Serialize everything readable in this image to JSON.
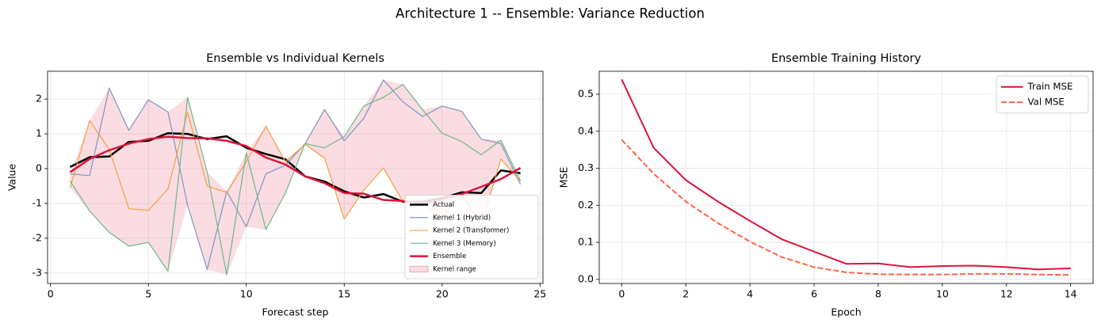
{
  "title": "Architecture 1 -- Ensemble: Variance Reduction",
  "chart_data": [
    {
      "type": "line",
      "title": "Ensemble vs Individual Kernels",
      "xlabel": "Forecast step",
      "ylabel": "Value",
      "x": [
        1,
        2,
        3,
        4,
        5,
        6,
        7,
        8,
        9,
        10,
        11,
        12,
        13,
        14,
        15,
        16,
        17,
        18,
        19,
        20,
        21,
        22,
        23,
        24
      ],
      "series": [
        {
          "name": "Actual",
          "color": "#000000",
          "linewidth": 2.5,
          "values": [
            0.05,
            0.33,
            0.35,
            0.77,
            0.8,
            1.02,
            1.0,
            0.85,
            0.93,
            0.6,
            0.42,
            0.27,
            -0.22,
            -0.37,
            -0.65,
            -0.83,
            -0.73,
            -0.95,
            -0.95,
            -0.85,
            -0.68,
            -0.7,
            -0.05,
            -0.13
          ]
        },
        {
          "name": "Kernel 1 (Hybrid)",
          "color": "#7f96c0",
          "linewidth": 1.2,
          "values": [
            -0.15,
            -0.2,
            2.32,
            1.1,
            1.98,
            1.63,
            -1.05,
            -2.9,
            -0.65,
            -1.67,
            -0.15,
            0.1,
            0.72,
            1.7,
            0.8,
            1.45,
            2.55,
            1.92,
            1.5,
            1.8,
            1.65,
            0.85,
            0.72,
            -0.45
          ]
        },
        {
          "name": "Kernel 2 (Transformer)",
          "color": "#f4a040",
          "linewidth": 1.2,
          "values": [
            -0.55,
            1.38,
            0.55,
            -1.15,
            -1.2,
            -0.58,
            1.62,
            -0.5,
            -0.68,
            0.2,
            1.22,
            0.2,
            0.7,
            0.3,
            -1.45,
            -0.62,
            0.02,
            -0.95,
            -0.98,
            -1.4,
            -0.75,
            -1.63,
            0.28,
            -0.35
          ]
        },
        {
          "name": "Kernel 3 (Memory)",
          "color": "#6db88a",
          "linewidth": 1.2,
          "values": [
            -0.35,
            -1.22,
            -1.83,
            -2.23,
            -2.12,
            -2.95,
            2.05,
            -0.1,
            -3.05,
            0.45,
            -1.75,
            -0.7,
            0.72,
            0.6,
            0.92,
            1.8,
            2.05,
            2.42,
            1.7,
            1.02,
            0.78,
            0.4,
            0.82,
            -0.35
          ]
        },
        {
          "name": "Ensemble",
          "color": "#dc143c",
          "linewidth": 2.5,
          "values": [
            -0.1,
            0.28,
            0.53,
            0.72,
            0.85,
            0.92,
            0.88,
            0.87,
            0.8,
            0.65,
            0.32,
            0.12,
            -0.22,
            -0.42,
            -0.7,
            -0.72,
            -0.9,
            -0.93,
            -1.0,
            -0.88,
            -0.73,
            -0.52,
            -0.3,
            0.02
          ]
        }
      ],
      "band": {
        "name": "Kernel range",
        "color": "#dc143c",
        "opacity": 0.15,
        "range_of": [
          1,
          2,
          3
        ]
      },
      "xlim": [
        -0.15,
        25.15
      ],
      "ylim": [
        -3.3,
        2.8
      ],
      "xticks": [
        0,
        5,
        10,
        15,
        20,
        25
      ],
      "yticks": [
        -3,
        -2,
        -1,
        0,
        1,
        2
      ],
      "grid": true,
      "legend": "lower right"
    },
    {
      "type": "line",
      "title": "Ensemble Training History",
      "xlabel": "Epoch",
      "ylabel": "MSE",
      "x": [
        0,
        1,
        2,
        3,
        4,
        5,
        6,
        7,
        8,
        9,
        10,
        11,
        12,
        13,
        14
      ],
      "series": [
        {
          "name": "Train MSE",
          "color": "#dc143c",
          "linewidth": 2,
          "values": [
            0.54,
            0.355,
            0.268,
            0.21,
            0.158,
            0.108,
            0.075,
            0.042,
            0.043,
            0.033,
            0.036,
            0.037,
            0.033,
            0.027,
            0.03
          ]
        },
        {
          "name": "Val MSE",
          "color": "#ff6347",
          "linewidth": 2,
          "linestyle": "dashed",
          "values": [
            0.377,
            0.285,
            0.21,
            0.152,
            0.102,
            0.06,
            0.033,
            0.019,
            0.014,
            0.013,
            0.013,
            0.015,
            0.015,
            0.013,
            0.012
          ]
        }
      ],
      "xlim": [
        -0.7,
        14.7
      ],
      "ylim": [
        -0.011,
        0.562
      ],
      "xticks": [
        0,
        2,
        4,
        6,
        8,
        10,
        12,
        14
      ],
      "yticks": [
        {
          "value": 0,
          "label": "0.0"
        },
        0.1,
        0.2,
        0.3,
        0.4,
        0.5
      ],
      "grid": true,
      "legend": "upper right"
    }
  ]
}
